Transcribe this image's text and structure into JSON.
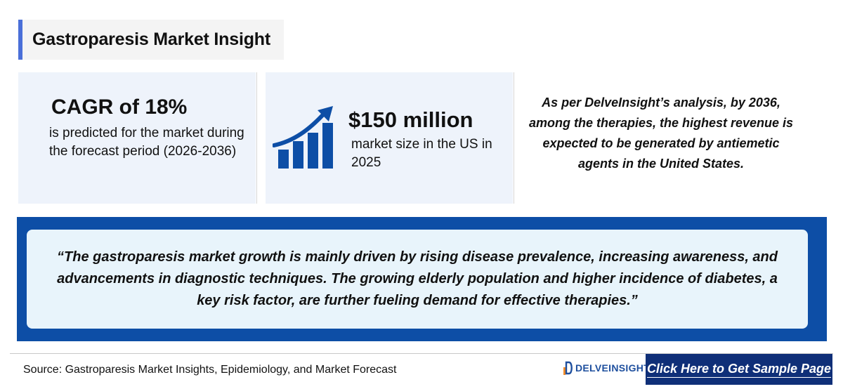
{
  "header": {
    "title": "Gastroparesis Market Insight"
  },
  "cagr_card": {
    "headline": "CAGR of 18%",
    "description": "is predicted for the market during the forecast period (2026-2036)"
  },
  "market_size_card": {
    "icon": "growth-bar-chart-icon",
    "headline": "$150 million",
    "description": "market size in the US in 2025"
  },
  "analysis": {
    "text": "As per DelveInsight’s analysis, by 2036, among the therapies, the highest revenue is expected to be generated by antiemetic agents in the United States."
  },
  "quote": {
    "text": "“The gastroparesis market growth is mainly driven by rising disease prevalence, increasing awareness, and advancements in diagnostic techniques. The growing elderly population and higher incidence of diabetes, a key risk factor, are further fueling demand for effective therapies.”"
  },
  "footer": {
    "source": "Source: Gastroparesis Market Insights, Epidemiology, and Market Forecast",
    "logo_text": "DELVEINSIGHT",
    "cta_label": "Click Here to Get Sample Page"
  },
  "colors": {
    "accent_blue": "#0d4ea6",
    "title_accent": "#4a6fd8",
    "card_bg": "#eef3fb",
    "quote_bg": "#e8f4fb",
    "cta_bg": "#0f2f78",
    "logo_blue": "#1e4f9e"
  }
}
